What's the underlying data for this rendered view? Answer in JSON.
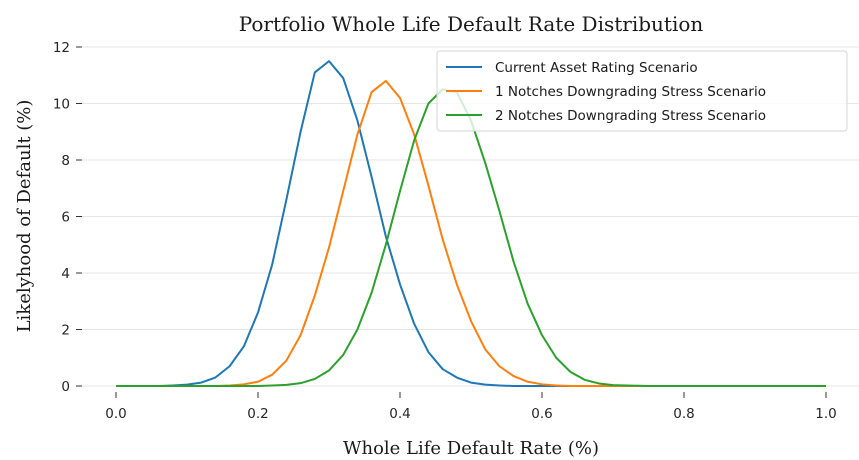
{
  "chart_data": {
    "type": "line",
    "title": "Portfolio Whole Life Default Rate Distribution",
    "xlabel": "Whole Life Default Rate (%)",
    "ylabel": "Likelyhood of Default (%)",
    "xlim": [
      0,
      1.0
    ],
    "ylim": [
      0,
      12
    ],
    "x_ticks": [
      "0.0",
      "0.2",
      "0.4",
      "0.6",
      "0.8",
      "1.0"
    ],
    "y_ticks": [
      "0",
      "2",
      "4",
      "6",
      "8",
      "10",
      "12"
    ],
    "grid": "horizontal",
    "legend_position": "top-right",
    "series": [
      {
        "name": "Current Asset Rating Scenario",
        "color": "#1f77b4",
        "x": [
          0.0,
          0.02,
          0.04,
          0.06,
          0.08,
          0.1,
          0.12,
          0.14,
          0.16,
          0.18,
          0.2,
          0.22,
          0.24,
          0.26,
          0.28,
          0.3,
          0.32,
          0.34,
          0.36,
          0.38,
          0.4,
          0.42,
          0.44,
          0.46,
          0.48,
          0.5,
          0.52,
          0.54,
          0.56,
          0.58,
          0.6,
          0.62,
          0.64,
          0.66,
          0.68,
          0.7,
          0.75,
          0.8,
          0.85,
          0.9,
          0.95,
          1.0
        ],
        "y": [
          0,
          0,
          0,
          0,
          0.02,
          0.05,
          0.12,
          0.3,
          0.7,
          1.4,
          2.6,
          4.3,
          6.6,
          9.0,
          11.1,
          11.5,
          10.9,
          9.4,
          7.4,
          5.3,
          3.6,
          2.2,
          1.2,
          0.6,
          0.3,
          0.12,
          0.05,
          0.02,
          0,
          0,
          0,
          0,
          0,
          0,
          0,
          0,
          0,
          0,
          0,
          0,
          0,
          0
        ]
      },
      {
        "name": "1 Notches Downgrading Stress Scenario",
        "color": "#ff7f0e",
        "x": [
          0.0,
          0.02,
          0.04,
          0.06,
          0.08,
          0.1,
          0.12,
          0.14,
          0.16,
          0.18,
          0.2,
          0.22,
          0.24,
          0.26,
          0.28,
          0.3,
          0.32,
          0.34,
          0.36,
          0.38,
          0.4,
          0.42,
          0.44,
          0.46,
          0.48,
          0.5,
          0.52,
          0.54,
          0.56,
          0.58,
          0.6,
          0.62,
          0.64,
          0.66,
          0.68,
          0.7,
          0.75,
          0.8,
          0.85,
          0.9,
          0.95,
          1.0
        ],
        "y": [
          0,
          0,
          0,
          0,
          0,
          0,
          0,
          0,
          0.02,
          0.06,
          0.15,
          0.4,
          0.9,
          1.8,
          3.2,
          4.9,
          6.9,
          8.9,
          10.4,
          10.8,
          10.2,
          8.9,
          7.1,
          5.2,
          3.6,
          2.3,
          1.3,
          0.7,
          0.35,
          0.15,
          0.06,
          0.02,
          0,
          0,
          0,
          0,
          0,
          0,
          0,
          0,
          0,
          0
        ]
      },
      {
        "name": "2 Notches Downgrading Stress Scenario",
        "color": "#2ca02c",
        "x": [
          0.0,
          0.02,
          0.04,
          0.06,
          0.08,
          0.1,
          0.12,
          0.14,
          0.16,
          0.18,
          0.2,
          0.22,
          0.24,
          0.26,
          0.28,
          0.3,
          0.32,
          0.34,
          0.36,
          0.38,
          0.4,
          0.42,
          0.44,
          0.46,
          0.48,
          0.5,
          0.52,
          0.54,
          0.56,
          0.58,
          0.6,
          0.62,
          0.64,
          0.66,
          0.68,
          0.7,
          0.75,
          0.8,
          0.85,
          0.9,
          0.95,
          1.0
        ],
        "y": [
          0,
          0,
          0,
          0,
          0,
          0,
          0,
          0,
          0,
          0,
          0,
          0.02,
          0.04,
          0.1,
          0.25,
          0.55,
          1.1,
          2.0,
          3.3,
          5.0,
          6.9,
          8.7,
          10.0,
          10.5,
          10.4,
          9.4,
          7.9,
          6.2,
          4.4,
          2.9,
          1.8,
          1.0,
          0.5,
          0.22,
          0.09,
          0.03,
          0,
          0,
          0,
          0,
          0,
          0
        ]
      }
    ]
  }
}
